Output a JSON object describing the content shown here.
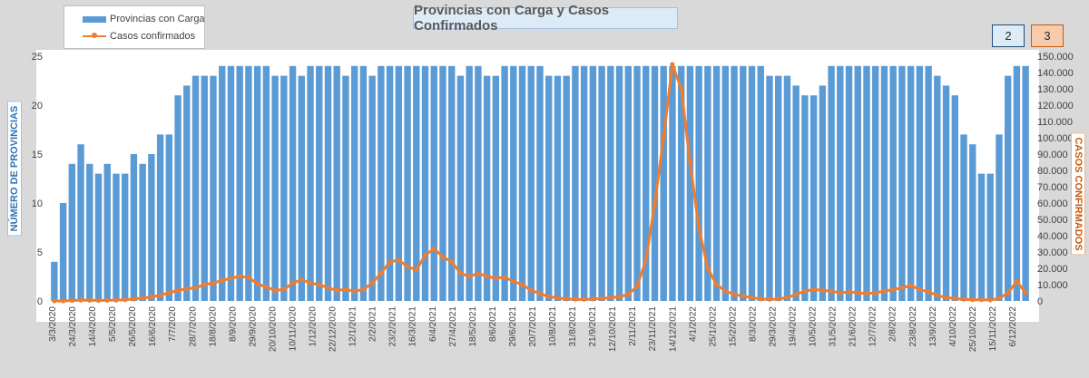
{
  "chart_data": {
    "type": "bar",
    "title": "Provincias con Carga y Casos Confirmados",
    "ylabel": "NÚMERO DE PROVINCIAS",
    "y2label": "CASOS CONFIRMADOS",
    "ylim": [
      0,
      25
    ],
    "y2lim": [
      0,
      150000
    ],
    "yticks": [
      "0",
      "5",
      "10",
      "15",
      "20",
      "25"
    ],
    "y2ticks": [
      "0",
      "10.000",
      "20.000",
      "30.000",
      "40.000",
      "50.000",
      "60.000",
      "70.000",
      "80.000",
      "90.000",
      "100.000",
      "110.000",
      "120.000",
      "130.000",
      "140.000",
      "150.000"
    ],
    "x_tick_labels": [
      "3/3/2020",
      "24/3/2020",
      "14/4/2020",
      "5/5/2020",
      "26/5/2020",
      "16/6/2020",
      "7/7/2020",
      "28/7/2020",
      "18/8/2020",
      "8/9/2020",
      "29/9/2020",
      "20/10/2020",
      "10/11/2020",
      "1/12/2020",
      "22/12/2020",
      "12/1/2021",
      "2/2/2021",
      "23/2/2021",
      "16/3/2021",
      "6/4/2021",
      "27/4/2021",
      "18/5/2021",
      "8/6/2021",
      "29/6/2021",
      "20/7/2021",
      "10/8/2021",
      "31/8/2021",
      "21/9/2021",
      "12/10/2021",
      "2/11/2021",
      "23/11/2021",
      "14/12/2021",
      "4/1/2022",
      "25/1/2022",
      "15/2/2022",
      "8/3/2022",
      "29/3/2022",
      "19/4/2022",
      "10/5/2022",
      "31/5/2022",
      "21/6/2022",
      "12/7/2022",
      "2/8/2022",
      "23/8/2022",
      "13/9/2022",
      "4/10/2022",
      "25/10/2022",
      "15/11/2022",
      "6/12/2022"
    ],
    "legend_position": "top-left",
    "grid": false,
    "series": [
      {
        "name": "Provincias con Carga",
        "type": "bar",
        "axis": "left",
        "color": "#5b9bd5",
        "values": [
          4,
          10,
          14,
          16,
          14,
          13,
          14,
          13,
          13,
          15,
          14,
          15,
          17,
          17,
          21,
          22,
          23,
          23,
          23,
          24,
          24,
          24,
          24,
          24,
          24,
          23,
          23,
          24,
          23,
          24,
          24,
          24,
          24,
          23,
          24,
          24,
          23,
          24,
          24,
          24,
          24,
          24,
          24,
          24,
          24,
          24,
          23,
          24,
          24,
          23,
          23,
          24,
          24,
          24,
          24,
          24,
          23,
          23,
          23,
          24,
          24,
          24,
          24,
          24,
          24,
          24,
          24,
          24,
          24,
          24,
          24,
          24,
          24,
          24,
          24,
          24,
          24,
          24,
          24,
          24,
          24,
          23,
          23,
          23,
          22,
          21,
          21,
          22,
          24,
          24,
          24,
          24,
          24,
          24,
          24,
          24,
          24,
          24,
          24,
          24,
          23,
          22,
          21,
          17,
          16,
          13,
          13,
          17,
          23,
          24,
          24
        ]
      },
      {
        "name": "Casos confirmados",
        "type": "line",
        "axis": "right",
        "color": "#ed7d31",
        "values": [
          0,
          0,
          300,
          500,
          400,
          300,
          400,
          500,
          800,
          1200,
          1800,
          2500,
          3500,
          5000,
          6500,
          7500,
          8000,
          10000,
          11000,
          12500,
          14000,
          15000,
          14500,
          10500,
          8500,
          6500,
          7000,
          11000,
          13000,
          11000,
          10000,
          8000,
          6500,
          7000,
          6000,
          7000,
          11000,
          17000,
          24000,
          25000,
          21000,
          19000,
          28000,
          32000,
          27000,
          24000,
          17000,
          15000,
          17000,
          15000,
          14000,
          14500,
          12000,
          10000,
          6500,
          4500,
          2700,
          1800,
          1200,
          1000,
          1000,
          1200,
          1500,
          2000,
          2500,
          4000,
          9000,
          25000,
          60000,
          100000,
          145000,
          130000,
          85000,
          45000,
          20000,
          10000,
          6000,
          4000,
          3000,
          2000,
          1200,
          1000,
          1200,
          2000,
          4000,
          6000,
          7000,
          6500,
          6000,
          5000,
          5500,
          5000,
          4500,
          5000,
          6000,
          7000,
          8000,
          9500,
          7000,
          5500,
          3500,
          2000,
          1500,
          1000,
          800,
          700,
          600,
          1500,
          5000,
          12000,
          5000
        ]
      }
    ]
  },
  "legend": {
    "bar_label": "Provincias con Carga",
    "line_label": "Casos confirmados"
  },
  "badges": {
    "left": "2",
    "right": "3"
  },
  "colors": {
    "bar": "#5b9bd5",
    "line": "#ed7d31",
    "plot_bg": "#ffffff",
    "page_bg": "#d9d9d9"
  }
}
